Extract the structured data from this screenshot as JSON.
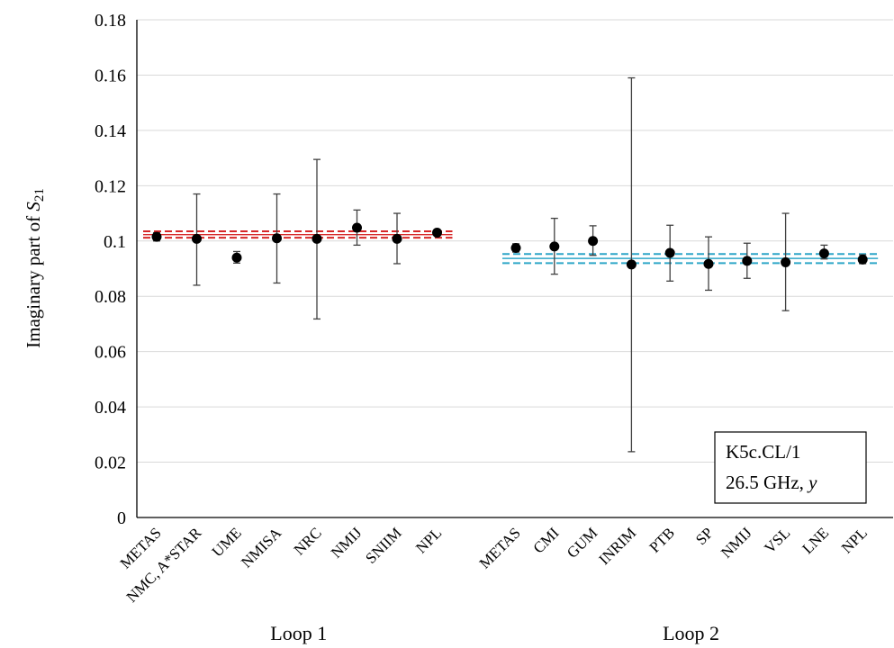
{
  "chart_data": {
    "type": "scatter",
    "ylabel": "Imaginary  part of S21",
    "ylabel_parts": {
      "main": "Imaginary  part of ",
      "symbol": "S",
      "subscript": "21"
    },
    "ylim": [
      0,
      0.18
    ],
    "yticks": [
      "0",
      "0.02",
      "0.04",
      "0.06",
      "0.08",
      "0.1",
      "0.12",
      "0.14",
      "0.16",
      "0.18"
    ],
    "grid": true,
    "legend_box": {
      "line1": "K5c.CL/1",
      "line2_text": "26.5 GHz, ",
      "line2_italic": "y",
      "placement": "bottom-right"
    },
    "groups": [
      {
        "label": "Loop 1",
        "reference_color": "#d62728",
        "reference_value": 0.1023,
        "reference_band": [
          0.1012,
          0.1035
        ],
        "points": [
          {
            "name": "METAS",
            "value": 0.1015,
            "lower": 0.1,
            "upper": 0.103
          },
          {
            "name": "NMC, A*STAR",
            "value": 0.1008,
            "lower": 0.084,
            "upper": 0.117
          },
          {
            "name": "UME",
            "value": 0.094,
            "lower": 0.092,
            "upper": 0.0962
          },
          {
            "name": "NMISA",
            "value": 0.101,
            "lower": 0.0848,
            "upper": 0.117
          },
          {
            "name": "NRC",
            "value": 0.1008,
            "lower": 0.0718,
            "upper": 0.1295
          },
          {
            "name": "NMIJ",
            "value": 0.1048,
            "lower": 0.0985,
            "upper": 0.1112
          },
          {
            "name": "SNIIM",
            "value": 0.1008,
            "lower": 0.0918,
            "upper": 0.11
          },
          {
            "name": "NPL",
            "value": 0.103,
            "lower": 0.102,
            "upper": 0.104
          }
        ]
      },
      {
        "label": "Loop 2",
        "reference_color": "#2ea6c8",
        "reference_value": 0.0937,
        "reference_band": [
          0.092,
          0.0953
        ],
        "points": [
          {
            "name": "METAS",
            "value": 0.0975,
            "lower": 0.096,
            "upper": 0.099
          },
          {
            "name": "CMI",
            "value": 0.098,
            "lower": 0.088,
            "upper": 0.1082
          },
          {
            "name": "GUM",
            "value": 0.1,
            "lower": 0.0948,
            "upper": 0.1055
          },
          {
            "name": "INRIM",
            "value": 0.0915,
            "lower": 0.0238,
            "upper": 0.159
          },
          {
            "name": "PTB",
            "value": 0.0957,
            "lower": 0.0855,
            "upper": 0.1057
          },
          {
            "name": "SP",
            "value": 0.0917,
            "lower": 0.0822,
            "upper": 0.1015
          },
          {
            "name": "NMIJ",
            "value": 0.0928,
            "lower": 0.0865,
            "upper": 0.0992
          },
          {
            "name": "VSL",
            "value": 0.0923,
            "lower": 0.0748,
            "upper": 0.11
          },
          {
            "name": "LNE",
            "value": 0.0955,
            "lower": 0.0935,
            "upper": 0.0985
          },
          {
            "name": "NPL",
            "value": 0.0933,
            "lower": 0.0918,
            "upper": 0.095
          }
        ]
      }
    ]
  }
}
